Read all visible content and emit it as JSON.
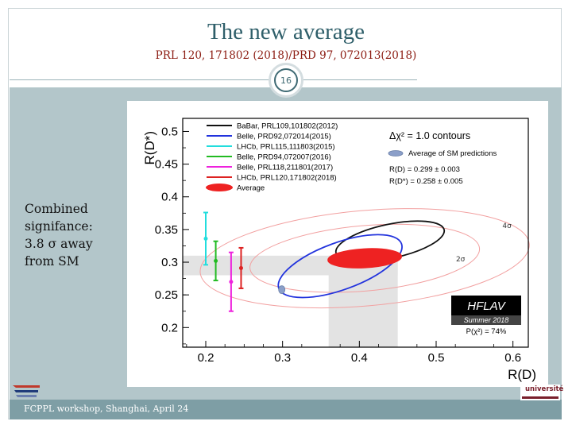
{
  "slide": {
    "title": "The new average",
    "subtitle": "PRL 120, 171802 (2018)/PRD 97, 072013(2018)",
    "page_number": "16",
    "side_text": [
      "Combined",
      "signifance:",
      "3.8 σ away",
      "from SM"
    ],
    "footer": "FCPPL workshop, Shanghai, April 24",
    "logo_right_text": "université"
  },
  "colors": {
    "title": "#2f5f6a",
    "subtitle": "#8b1a10",
    "content_bg": "#b3c6ca",
    "footer_bg": "#7e9ea5"
  },
  "chart_data": {
    "type": "scatter",
    "xlabel": "R(D)",
    "ylabel": "R(D*)",
    "xlim": [
      0.17,
      0.62
    ],
    "ylim": [
      0.17,
      0.52
    ],
    "x_ticks": [
      "0.2",
      "0.3",
      "0.4",
      "0.5",
      "0.6"
    ],
    "y_ticks": [
      "0.2",
      "0.25",
      "0.3",
      "0.35",
      "0.4",
      "0.45",
      "0.5"
    ],
    "legend": [
      {
        "label": "BaBar, PRL109,101802(2012)",
        "color": "#111111",
        "kind": "ellipse"
      },
      {
        "label": "Belle, PRD92,072014(2015)",
        "color": "#2233dd",
        "kind": "ellipse"
      },
      {
        "label": "LHCb, PRL115,111803(2015)",
        "color": "#22dddd",
        "kind": "bar"
      },
      {
        "label": "Belle, PRD94,072007(2016)",
        "color": "#22bb22",
        "kind": "bar"
      },
      {
        "label": "Belle, PRL118,211801(2017)",
        "color": "#ee22dd",
        "kind": "bar"
      },
      {
        "label": "LHCb, PRL120,171802(2018)",
        "color": "#dd2222",
        "kind": "bar"
      },
      {
        "label": "Average",
        "color": "#ee2222",
        "kind": "filled"
      }
    ],
    "contour_header": "Δχ² = 1.0 contours",
    "sm_legend": "Average of SM predictions",
    "sm_rd": "R(D) = 0.299 ± 0.003",
    "sm_rdstar": "R(D*) = 0.258 ± 0.005",
    "measurements_rdstar": [
      {
        "name": "LHCb, PRL115,111803(2015)",
        "x": 0.2,
        "y": 0.336,
        "err": 0.04,
        "color": "#22dddd"
      },
      {
        "name": "Belle, PRD94,072007(2016)",
        "x": 0.213,
        "y": 0.302,
        "err": 0.03,
        "color": "#22bb22"
      },
      {
        "name": "Belle, PRL118,211801(2017)",
        "x": 0.233,
        "y": 0.27,
        "err": 0.045,
        "color": "#ee22dd"
      },
      {
        "name": "LHCb, PRL120,171802(2018)",
        "x": 0.246,
        "y": 0.291,
        "err": 0.031,
        "color": "#dd2222"
      }
    ],
    "ellipses": [
      {
        "name": "BaBar, PRL109,101802(2012)",
        "cx": 0.44,
        "cy": 0.332,
        "rx": 0.072,
        "ry": 0.026,
        "rot": -12,
        "color": "#111111"
      },
      {
        "name": "Belle, PRD92,072014(2015)",
        "cx": 0.375,
        "cy": 0.294,
        "rx": 0.085,
        "ry": 0.036,
        "rot": -20,
        "color": "#2233dd"
      },
      {
        "name": "Average",
        "cx": 0.407,
        "cy": 0.306,
        "rx": 0.048,
        "ry": 0.0145,
        "rot": -3,
        "color": "#ee2222",
        "filled": true
      }
    ],
    "sigma_contours": [
      {
        "label": "2σ",
        "cx": 0.407,
        "cy": 0.306,
        "rx": 0.15,
        "ry": 0.05,
        "rot": -5
      },
      {
        "label": "4σ",
        "cx": 0.407,
        "cy": 0.306,
        "rx": 0.215,
        "ry": 0.073,
        "rot": -5
      }
    ],
    "average_band_rd": [
      0.36,
      0.45
    ],
    "average_band_rdstar": [
      0.28,
      0.31
    ],
    "sm_point": {
      "x": 0.299,
      "y": 0.258
    },
    "hflav": {
      "name": "HFLAV",
      "edition": "Summer 2018",
      "pvalue": "P(χ²) = 74%"
    }
  }
}
